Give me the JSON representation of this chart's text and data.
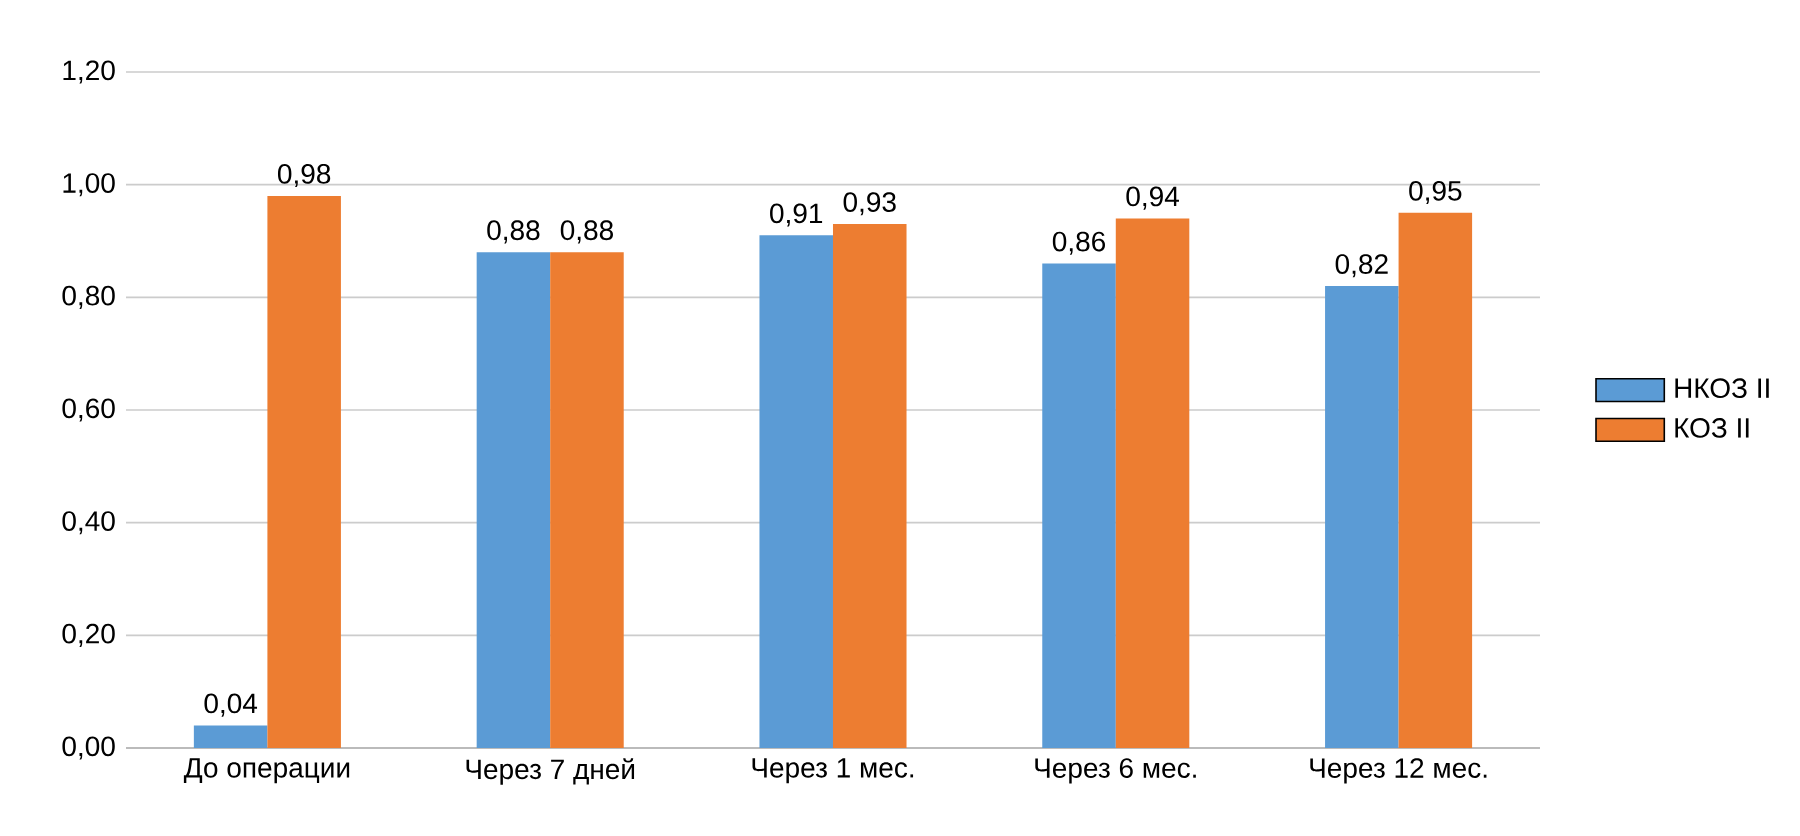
{
  "chart_data": {
    "type": "bar",
    "categories": [
      "До операции",
      "Через 7 дней",
      "Через 1 мес.",
      "Через 6 мес.",
      "Через 12 мес."
    ],
    "series": [
      {
        "name": "НКОЗ II",
        "color": "#5b9bd5",
        "values": [
          0.04,
          0.88,
          0.91,
          0.86,
          0.82
        ],
        "value_labels": [
          "0,04",
          "0,88",
          "0,91",
          "0,86",
          "0,82"
        ]
      },
      {
        "name": "КОЗ II",
        "color": "#ed7d31",
        "values": [
          0.98,
          0.88,
          0.93,
          0.94,
          0.95
        ],
        "value_labels": [
          "0,98",
          "0,88",
          "0,93",
          "0,94",
          "0,95"
        ]
      }
    ],
    "ylim": [
      0,
      1.2
    ],
    "yticks": [
      {
        "value": 0,
        "label": "0,00"
      },
      {
        "value": 0.2,
        "label": "0,20"
      },
      {
        "value": 0.4,
        "label": "0,40"
      },
      {
        "value": 0.6,
        "label": "0,60"
      },
      {
        "value": 0.8,
        "label": "0,80"
      },
      {
        "value": 1.0,
        "label": "1,00"
      },
      {
        "value": 1.2,
        "label": "1,20"
      }
    ],
    "grid": "y",
    "legend": "right"
  }
}
